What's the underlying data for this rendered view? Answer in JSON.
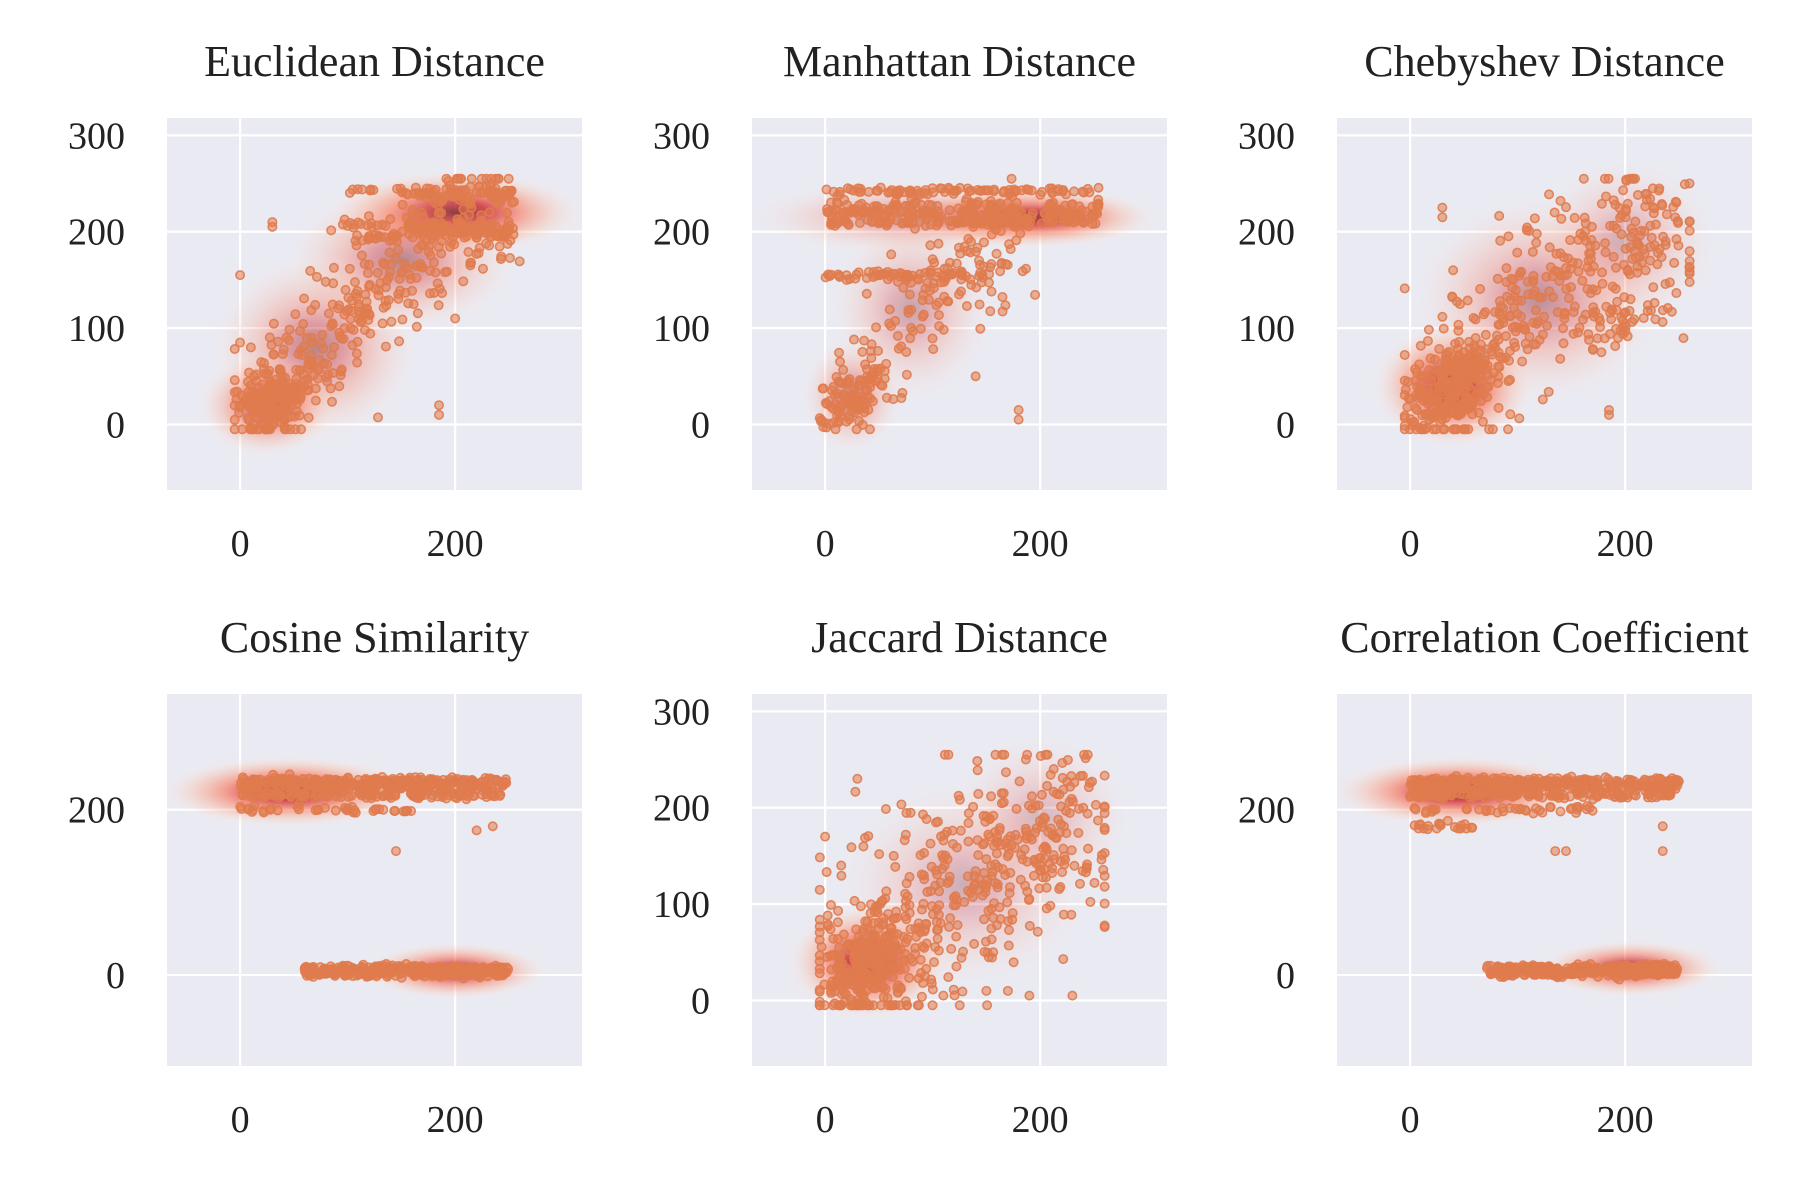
{
  "figure": {
    "colors": {
      "panel_bg": "#eaeaf2",
      "grid": "#ffffff",
      "density_cmap": [
        "#fff5f0",
        "#fcbba1",
        "#fb6a4a",
        "#cb181d",
        "#67000d"
      ],
      "points": "#e07b4f"
    }
  },
  "chart_data": [
    {
      "type": "scatter",
      "title": "Euclidean Distance",
      "xlabel": "",
      "ylabel": "",
      "xlim": [
        -68,
        318
      ],
      "ylim": [
        -68,
        318
      ],
      "xticks": [
        0,
        200
      ],
      "yticks": [
        0,
        100,
        200,
        300
      ],
      "xtick_labels": [
        "0",
        "200"
      ],
      "ytick_labels": [
        "0",
        "100",
        "200",
        "300"
      ],
      "grid": true,
      "density_overlay": true,
      "clusters": [
        {
          "trend": [
            [
              5,
              10
            ],
            [
              60,
              60
            ],
            [
              120,
              130
            ],
            [
              175,
              190
            ],
            [
              245,
              225
            ]
          ],
          "spread": 32,
          "n": 360
        },
        {
          "trend": [
            [
              10,
              15
            ],
            [
              45,
              38
            ]
          ],
          "spread": 16,
          "n": 140
        },
        {
          "band_y": 242,
          "x_range": [
            90,
            255
          ],
          "n": 45
        },
        {
          "band_y": 238,
          "x_range": [
            165,
            255
          ],
          "n": 40
        },
        {
          "band_y": 208,
          "x_range": [
            95,
            255
          ],
          "n": 45
        },
        {
          "band_y": 200,
          "x_range": [
            160,
            255
          ],
          "n": 50
        },
        {
          "band_y": 195,
          "x_range": [
            100,
            255
          ],
          "n": 35
        }
      ],
      "outliers": [
        [
          30,
          205
        ],
        [
          30,
          210
        ],
        [
          0,
          85
        ],
        [
          10,
          80
        ],
        [
          0,
          155
        ],
        [
          185,
          20
        ],
        [
          185,
          10
        ],
        [
          200,
          110
        ]
      ],
      "kde": [
        {
          "x": 200,
          "y": 220,
          "sx": 55,
          "sy": 20,
          "w": 1.0
        },
        {
          "x": 150,
          "y": 170,
          "sx": 50,
          "sy": 35,
          "w": 0.5
        },
        {
          "x": 70,
          "y": 80,
          "sx": 45,
          "sy": 45,
          "w": 0.5
        },
        {
          "x": 25,
          "y": 20,
          "sx": 30,
          "sy": 25,
          "w": 0.75
        }
      ]
    },
    {
      "type": "scatter",
      "title": "Manhattan Distance",
      "xlabel": "",
      "ylabel": "",
      "xlim": [
        -68,
        318
      ],
      "ylim": [
        -68,
        318
      ],
      "xticks": [
        0,
        200
      ],
      "yticks": [
        0,
        100,
        200,
        300
      ],
      "xtick_labels": [
        "0",
        "200"
      ],
      "ytick_labels": [
        "0",
        "100",
        "200",
        "300"
      ],
      "grid": true,
      "density_overlay": true,
      "clusters": [
        {
          "band_y": 242,
          "x_range": [
            0,
            255
          ],
          "n": 90
        },
        {
          "band_y": 228,
          "x_range": [
            5,
            255
          ],
          "n": 60
        },
        {
          "band_y": 220,
          "x_range": [
            0,
            255
          ],
          "n": 110
        },
        {
          "band_y": 210,
          "x_range": [
            0,
            255
          ],
          "n": 110
        },
        {
          "band_y": 155,
          "x_range": [
            0,
            155
          ],
          "n": 60
        },
        {
          "trend": [
            [
              20,
              30
            ],
            [
              60,
              90
            ],
            [
              100,
              140
            ],
            [
              140,
              170
            ],
            [
              175,
              200
            ]
          ],
          "spread": 28,
          "n": 160
        },
        {
          "trend": [
            [
              5,
              5
            ],
            [
              30,
              25
            ],
            [
              50,
              45
            ]
          ],
          "spread": 14,
          "n": 90
        }
      ],
      "outliers": [
        [
          180,
          15
        ],
        [
          180,
          5
        ],
        [
          140,
          50
        ],
        [
          20,
          150
        ]
      ],
      "kde": [
        {
          "x": 190,
          "y": 215,
          "sx": 55,
          "sy": 15,
          "w": 1.0
        },
        {
          "x": 80,
          "y": 215,
          "sx": 70,
          "sy": 18,
          "w": 0.4
        },
        {
          "x": 80,
          "y": 120,
          "sx": 35,
          "sy": 45,
          "w": 0.35
        },
        {
          "x": 25,
          "y": 30,
          "sx": 22,
          "sy": 28,
          "w": 0.45
        }
      ]
    },
    {
      "type": "scatter",
      "title": "Chebyshev Distance",
      "xlabel": "",
      "ylabel": "",
      "xlim": [
        -68,
        318
      ],
      "ylim": [
        -68,
        318
      ],
      "xticks": [
        0,
        200
      ],
      "yticks": [
        0,
        100,
        200,
        300
      ],
      "xtick_labels": [
        "0",
        "200"
      ],
      "ytick_labels": [
        "0",
        "100",
        "200",
        "300"
      ],
      "grid": true,
      "density_overlay": true,
      "clusters": [
        {
          "trend": [
            [
              5,
              10
            ],
            [
              50,
              50
            ],
            [
              100,
              110
            ],
            [
              150,
              160
            ],
            [
              200,
              195
            ],
            [
              245,
              215
            ]
          ],
          "spread": 38,
          "n": 420
        },
        {
          "trend": [
            [
              10,
              15
            ],
            [
              40,
              40
            ],
            [
              60,
              60
            ]
          ],
          "spread": 18,
          "n": 150
        },
        {
          "trend": [
            [
              150,
              100
            ],
            [
              240,
              115
            ]
          ],
          "spread": 15,
          "n": 50
        }
      ],
      "outliers": [
        [
          30,
          225
        ],
        [
          30,
          215
        ],
        [
          185,
          15
        ],
        [
          185,
          10
        ],
        [
          40,
          160
        ]
      ],
      "kde": [
        {
          "x": 40,
          "y": 40,
          "sx": 35,
          "sy": 30,
          "w": 1.0
        },
        {
          "x": 120,
          "y": 130,
          "sx": 55,
          "sy": 50,
          "w": 0.45
        },
        {
          "x": 200,
          "y": 190,
          "sx": 40,
          "sy": 40,
          "w": 0.3
        }
      ]
    },
    {
      "type": "scatter",
      "title": "Cosine Similarity",
      "xlabel": "",
      "ylabel": "",
      "xlim": [
        -68,
        318
      ],
      "ylim": [
        -110,
        340
      ],
      "xticks": [
        0,
        200
      ],
      "yticks": [
        0,
        200
      ],
      "xtick_labels": [
        "0",
        "200"
      ],
      "ytick_labels": [
        "0",
        "200"
      ],
      "grid": true,
      "density_overlay": true,
      "clusters": [
        {
          "band_y": 235,
          "x_range": [
            0,
            250
          ],
          "n": 160
        },
        {
          "band_y": 228,
          "x_range": [
            0,
            250
          ],
          "n": 150
        },
        {
          "band_y": 218,
          "x_range": [
            0,
            245
          ],
          "n": 130
        },
        {
          "band_y": 200,
          "x_range": [
            0,
            160
          ],
          "n": 40
        },
        {
          "band_y": 8,
          "x_range": [
            60,
            250
          ],
          "n": 170
        },
        {
          "band_y": 2,
          "x_range": [
            60,
            250
          ],
          "n": 150
        }
      ],
      "outliers": [
        [
          145,
          150
        ],
        [
          220,
          175
        ],
        [
          235,
          180
        ]
      ],
      "kde": [
        {
          "x": 45,
          "y": 222,
          "sx": 55,
          "sy": 20,
          "w": 1.0
        },
        {
          "x": 200,
          "y": 5,
          "sx": 40,
          "sy": 16,
          "w": 0.85
        }
      ]
    },
    {
      "type": "scatter",
      "title": "Jaccard Distance",
      "xlabel": "",
      "ylabel": "",
      "xlim": [
        -68,
        318
      ],
      "ylim": [
        -68,
        318
      ],
      "xticks": [
        0,
        200
      ],
      "yticks": [
        0,
        100,
        200,
        300
      ],
      "xtick_labels": [
        "0",
        "200"
      ],
      "ytick_labels": [
        "0",
        "100",
        "200",
        "300"
      ],
      "grid": true,
      "density_overlay": true,
      "clusters": [
        {
          "trend": [
            [
              10,
              15
            ],
            [
              60,
              60
            ],
            [
              120,
              120
            ],
            [
              180,
              160
            ],
            [
              240,
              180
            ]
          ],
          "spread": 48,
          "n": 520
        },
        {
          "trend": [
            [
              5,
              15
            ],
            [
              40,
              40
            ],
            [
              70,
              65
            ]
          ],
          "spread": 18,
          "n": 160
        }
      ],
      "outliers": [
        [
          30,
          230
        ],
        [
          0,
          170
        ],
        [
          15,
          140
        ],
        [
          110,
          5
        ],
        [
          150,
          10
        ],
        [
          190,
          5
        ],
        [
          230,
          5
        ],
        [
          170,
          10
        ]
      ],
      "kde": [
        {
          "x": 40,
          "y": 40,
          "sx": 35,
          "sy": 28,
          "w": 1.0
        },
        {
          "x": 130,
          "y": 120,
          "sx": 55,
          "sy": 50,
          "w": 0.3
        },
        {
          "x": 200,
          "y": 190,
          "sx": 40,
          "sy": 40,
          "w": 0.25
        }
      ]
    },
    {
      "type": "scatter",
      "title": "Correlation Coefficient",
      "xlabel": "",
      "ylabel": "",
      "xlim": [
        -68,
        318
      ],
      "ylim": [
        -110,
        340
      ],
      "xticks": [
        0,
        200
      ],
      "yticks": [
        0,
        200
      ],
      "xtick_labels": [
        "0",
        "200"
      ],
      "ytick_labels": [
        "0",
        "200"
      ],
      "grid": true,
      "density_overlay": true,
      "clusters": [
        {
          "band_y": 235,
          "x_range": [
            0,
            250
          ],
          "n": 160
        },
        {
          "band_y": 228,
          "x_range": [
            0,
            250
          ],
          "n": 150
        },
        {
          "band_y": 218,
          "x_range": [
            0,
            245
          ],
          "n": 130
        },
        {
          "band_y": 200,
          "x_range": [
            0,
            170
          ],
          "n": 40
        },
        {
          "band_y": 180,
          "x_range": [
            0,
            60
          ],
          "n": 20
        },
        {
          "band_y": 8,
          "x_range": [
            70,
            250
          ],
          "n": 170
        },
        {
          "band_y": 2,
          "x_range": [
            70,
            250
          ],
          "n": 150
        }
      ],
      "outliers": [
        [
          135,
          150
        ],
        [
          145,
          150
        ],
        [
          235,
          150
        ],
        [
          235,
          180
        ]
      ],
      "kde": [
        {
          "x": 45,
          "y": 222,
          "sx": 55,
          "sy": 20,
          "w": 1.0
        },
        {
          "x": 205,
          "y": 8,
          "sx": 40,
          "sy": 16,
          "w": 0.85
        }
      ]
    }
  ]
}
